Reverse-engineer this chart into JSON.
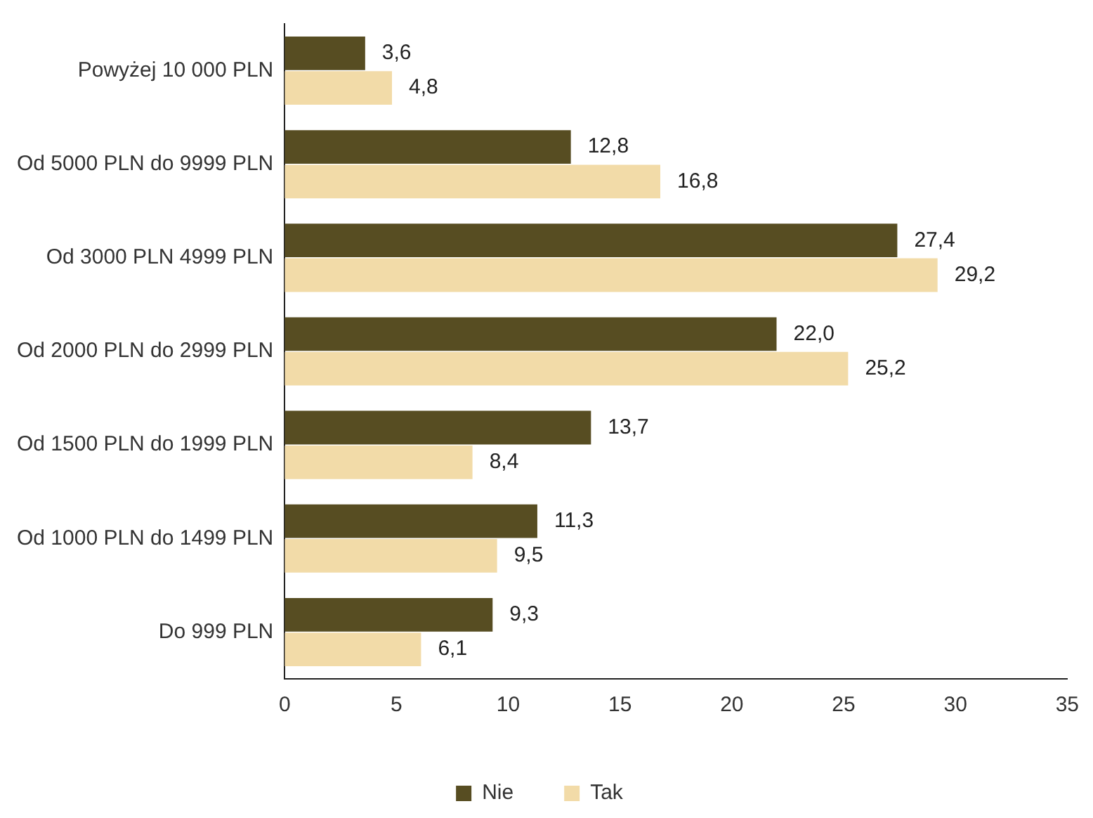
{
  "chart_data": {
    "type": "bar",
    "orientation": "horizontal",
    "categories": [
      "Powyżej 10 000 PLN",
      "Od 5000 PLN do 9999 PLN",
      "Od 3000 PLN 4999 PLN",
      "Od 2000 PLN do 2999 PLN",
      "Od 1500 PLN do 1999 PLN",
      "Od 1000 PLN do 1499 PLN",
      "Do 999 PLN"
    ],
    "series": [
      {
        "name": "Nie",
        "color": "#574d22",
        "values": [
          3.6,
          12.8,
          27.4,
          22.0,
          13.7,
          11.3,
          9.3
        ],
        "value_labels": [
          "3,6",
          "12,8",
          "27,4",
          "22,0",
          "13,7",
          "11,3",
          "9,3"
        ]
      },
      {
        "name": "Tak",
        "color": "#f2dba8",
        "values": [
          4.8,
          16.8,
          29.2,
          25.2,
          8.4,
          9.5,
          6.1
        ],
        "value_labels": [
          "4,8",
          "16,8",
          "29,2",
          "25,2",
          "8,4",
          "9,5",
          "6,1"
        ]
      }
    ],
    "xlim": [
      0,
      35
    ],
    "xticks": [
      0,
      5,
      10,
      15,
      20,
      25,
      30,
      35
    ],
    "grid": false,
    "legend": "bottom"
  }
}
